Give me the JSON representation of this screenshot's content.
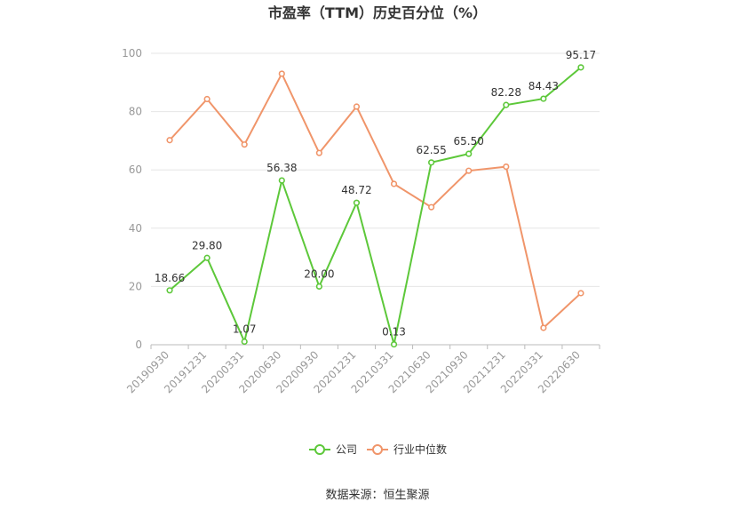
{
  "chart_data": {
    "type": "line",
    "title": "市盈率（TTM）历史百分位（%）",
    "categories": [
      "20190930",
      "20191231",
      "20200331",
      "20200630",
      "20200930",
      "20201231",
      "20210331",
      "20210630",
      "20210930",
      "20211231",
      "20220331",
      "20220630"
    ],
    "series": [
      {
        "name": "公司",
        "color": "#5dc83a",
        "values": [
          18.66,
          29.8,
          1.07,
          56.38,
          20.0,
          48.72,
          0.13,
          62.55,
          65.5,
          82.28,
          84.43,
          95.17
        ],
        "labels": [
          "18.66",
          "29.80",
          "1.07",
          "56.38",
          "20.00",
          "48.72",
          "0.13",
          "62.55",
          "65.50",
          "82.28",
          "84.43",
          "95.17"
        ]
      },
      {
        "name": "行业中位数",
        "color": "#f0956a",
        "values": [
          70.2,
          84.3,
          68.7,
          93.0,
          65.8,
          81.7,
          55.2,
          47.2,
          59.7,
          61.1,
          5.8,
          17.7
        ]
      }
    ],
    "ylim": [
      0,
      100
    ],
    "yticks": [
      0,
      20,
      40,
      60,
      80,
      100
    ],
    "grid": true,
    "legend": "bottom-center",
    "source": "数据来源：恒生聚源"
  }
}
